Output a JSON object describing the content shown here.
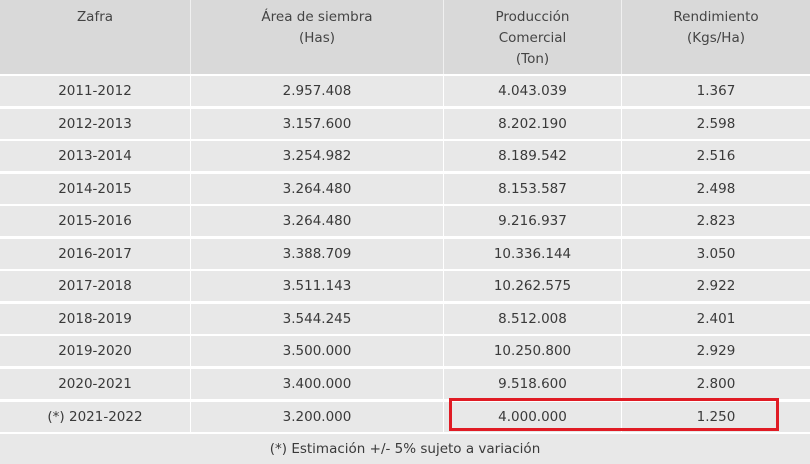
{
  "table": {
    "headers": [
      [
        "Zafra"
      ],
      [
        "Área de siembra",
        "(Has)"
      ],
      [
        "Producción",
        "Comercial",
        "(Ton)"
      ],
      [
        "Rendimiento",
        "(Kgs/Ha)"
      ]
    ],
    "rows": [
      [
        "2011-2012",
        "2.957.408",
        "4.043.039",
        "1.367"
      ],
      [
        "2012-2013",
        "3.157.600",
        "8.202.190",
        "2.598"
      ],
      [
        "2013-2014",
        "3.254.982",
        "8.189.542",
        "2.516"
      ],
      [
        "2014-2015",
        "3.264.480",
        "8.153.587",
        "2.498"
      ],
      [
        "2015-2016",
        "3.264.480",
        "9.216.937",
        "2.823"
      ],
      [
        "2016-2017",
        "3.388.709",
        "10.336.144",
        "3.050"
      ],
      [
        "2017-2018",
        "3.511.143",
        "10.262.575",
        "2.922"
      ],
      [
        "2018-2019",
        "3.544.245",
        "8.512.008",
        "2.401"
      ],
      [
        "2019-2020",
        "3.500.000",
        "10.250.800",
        "2.929"
      ],
      [
        "2020-2021",
        "3.400.000",
        "9.518.600",
        "2.800"
      ],
      [
        "(*) 2021-2022",
        "3.200.000",
        "4.000.000",
        "1.250"
      ]
    ],
    "footnote": "(*) Estimación +/- 5% sujeto a variación"
  },
  "colors": {
    "header_bg": "#d9d9d9",
    "row_bg": "#e8e8e8",
    "highlight": "#e01b24"
  }
}
